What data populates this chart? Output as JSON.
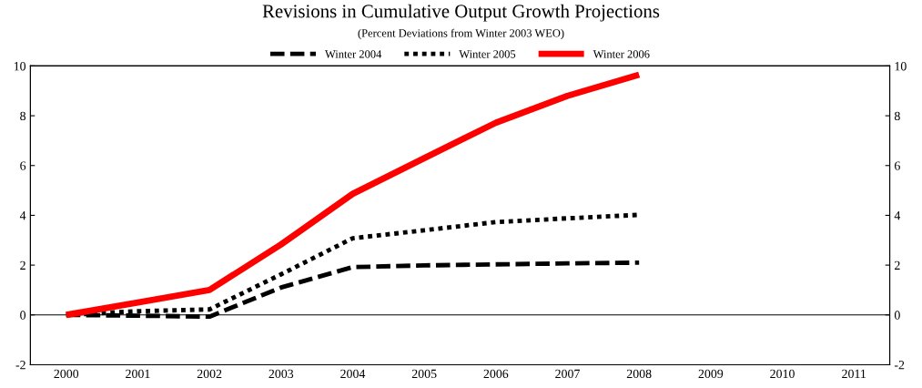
{
  "chart_data": {
    "type": "line",
    "title": "Revisions in Cumulative Output Growth Projections",
    "subtitle": "(Percent Deviations from Winter 2003 WEO)",
    "categories": [
      "2000",
      "2001",
      "2002",
      "2003",
      "2004",
      "2005",
      "2006",
      "2007",
      "2008",
      "2009",
      "2010",
      "2011"
    ],
    "series": [
      {
        "name": "Winter 2004",
        "color": "#000000",
        "line_style": "dashed",
        "values": [
          0,
          -0.03,
          -0.07,
          1.1,
          1.92,
          1.99,
          2.03,
          2.07,
          2.1,
          null,
          null,
          null
        ]
      },
      {
        "name": "Winter 2005",
        "color": "#000000",
        "line_style": "dotted",
        "values": [
          0,
          0.15,
          0.22,
          1.63,
          3.08,
          3.4,
          3.73,
          3.88,
          4.02,
          null,
          null,
          null
        ]
      },
      {
        "name": "Winter 2006",
        "color": "#ff0000",
        "line_style": "solid",
        "values": [
          0,
          0.5,
          1.0,
          2.83,
          4.86,
          6.3,
          7.72,
          8.8,
          9.65,
          null,
          null,
          null
        ]
      }
    ],
    "ylim": [
      -2,
      10
    ],
    "yticks": [
      -2,
      0,
      2,
      4,
      6,
      8,
      10
    ],
    "y2lim": [
      -2,
      10
    ],
    "y2ticks": [
      -2,
      0,
      2,
      4,
      6,
      8,
      10
    ],
    "ref_lines": [
      {
        "axis": "y",
        "value": 0,
        "color": "#000000"
      }
    ],
    "grid": false,
    "legend": "top",
    "marker": "none"
  }
}
